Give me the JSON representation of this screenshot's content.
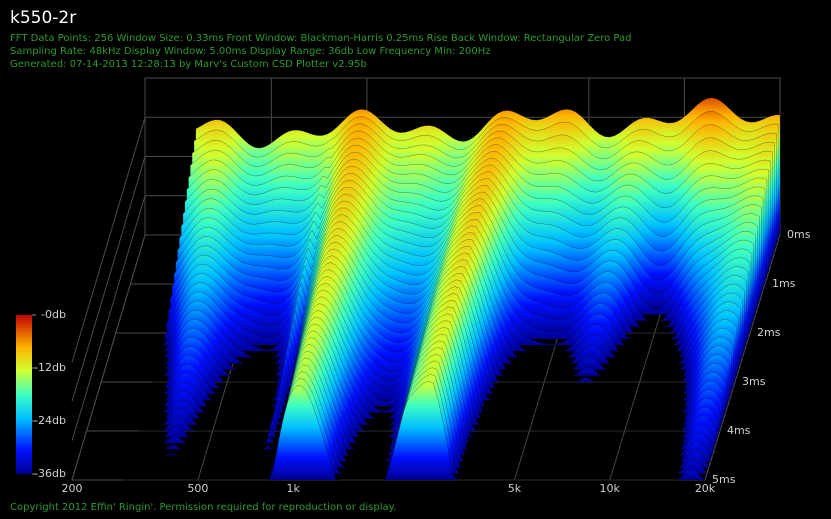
{
  "chart_data": {
    "type": "waterfall",
    "title": "k550-2r",
    "info_lines": [
      "FFT Data Points: 256   Window Size: 0.33ms   Front Window: Blackman-Harris 0.25ms Rise   Back Window: Rectangular Zero Pad",
      "Sampling Rate: 48kHz   Display Window: 5.00ms   Display Range: 36db   Low Frequency Min: 200Hz",
      "Generated: 07-14-2013 12:28:13 by Marv's Custom CSD Plotter v2.95b"
    ],
    "footer": "Copyright 2012 Effin' Ringin'. Permission required for reproduction or display.",
    "x_scale": "log",
    "xlim": [
      200,
      20000
    ],
    "xticks": [
      200,
      500,
      {
        "value": 1000,
        "label": "1k"
      },
      {
        "value": 5000,
        "label": "5k"
      },
      {
        "value": 10000,
        "label": "10k"
      },
      {
        "value": 20000,
        "label": "20k"
      }
    ],
    "zlim": [
      0,
      5
    ],
    "zticks": [
      {
        "value": 0,
        "label": "0ms"
      },
      {
        "value": 1,
        "label": "1ms"
      },
      {
        "value": 2,
        "label": "2ms"
      },
      {
        "value": 3,
        "label": "3ms"
      },
      {
        "value": 4,
        "label": "4ms"
      },
      {
        "value": 5,
        "label": "5ms"
      }
    ],
    "colorbar": {
      "lim": [
        -36,
        0
      ],
      "ticks": [
        {
          "value": 0,
          "label": "-0db"
        },
        {
          "value": -12,
          "label": "-12db"
        },
        {
          "value": -24,
          "label": "-24db"
        },
        {
          "value": -36,
          "label": "-36db"
        }
      ]
    }
  }
}
